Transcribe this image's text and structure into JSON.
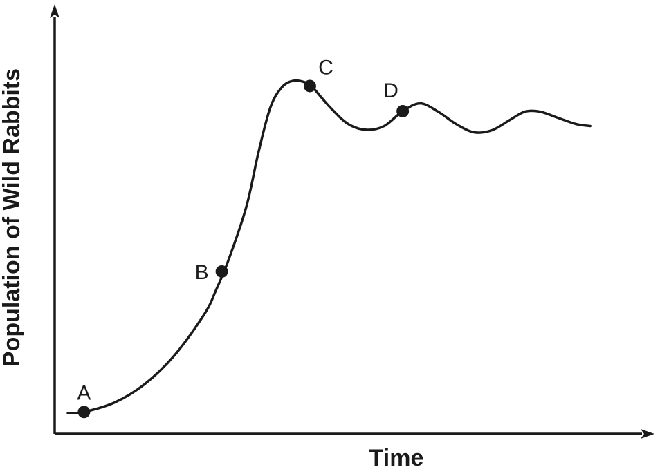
{
  "chart_data": {
    "type": "line",
    "xlabel": "Time",
    "ylabel": "Population of Wild Rabbits",
    "grid": false,
    "axis_ticks": false,
    "xlim": [
      0,
      100
    ],
    "ylim": [
      0,
      100
    ],
    "series": [
      {
        "values_xy": [
          [
            2.2,
            5.0
          ],
          [
            4.9,
            5.3
          ],
          [
            10,
            7.6
          ],
          [
            15,
            12
          ],
          [
            20,
            19
          ],
          [
            25,
            29
          ],
          [
            27,
            35
          ],
          [
            29,
            42
          ],
          [
            32,
            55
          ],
          [
            34,
            68
          ],
          [
            36,
            79
          ],
          [
            38,
            84
          ],
          [
            40,
            85.5
          ],
          [
            42,
            85
          ],
          [
            43,
            84
          ],
          [
            46,
            79
          ],
          [
            49,
            75
          ],
          [
            52,
            73.6
          ],
          [
            55,
            74.5
          ],
          [
            58,
            78
          ],
          [
            61,
            80
          ],
          [
            64,
            78
          ],
          [
            67,
            75
          ],
          [
            70,
            73
          ],
          [
            73,
            73.5
          ],
          [
            76,
            76
          ],
          [
            78.5,
            78
          ],
          [
            81,
            78
          ],
          [
            84,
            76.5
          ],
          [
            87,
            75
          ],
          [
            89.4,
            74.5
          ]
        ]
      }
    ],
    "points": [
      {
        "label": "A",
        "x": 4.9,
        "y": 5.3
      },
      {
        "label": "B",
        "x": 27.9,
        "y": 39.3
      },
      {
        "label": "C",
        "x": 42.6,
        "y": 84.2
      },
      {
        "label": "D",
        "x": 58.1,
        "y": 78.1
      }
    ]
  }
}
